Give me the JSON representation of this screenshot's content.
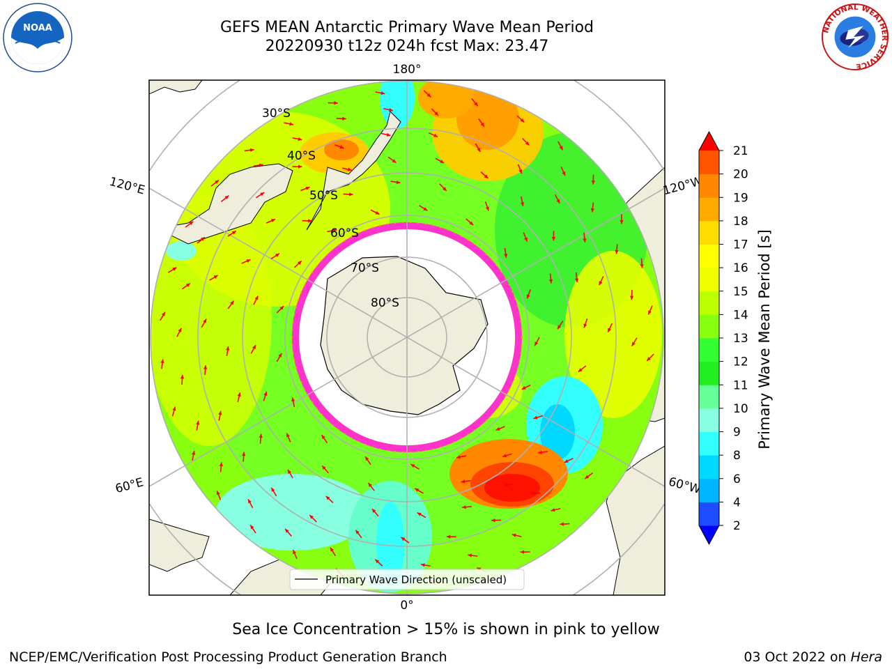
{
  "header": {
    "title_line1": "GEFS MEAN Antarctic Primary Wave Mean Period",
    "title_line2": "20220930 t12z 024h fcst   Max: 23.47"
  },
  "logos": {
    "left": {
      "icon": "noaa-logo",
      "text": "NOAA"
    },
    "right": {
      "icon": "national-weather-service-logo",
      "ring_text": "NATIONAL WEATHER SERVICE"
    }
  },
  "map": {
    "projection": "south-polar-stereographic",
    "edge_labels": {
      "top": "180°",
      "bottom": "0°",
      "left_upper": "120°E",
      "left_lower": "60°E",
      "right_upper": "120°W",
      "right_lower": "60°W"
    },
    "latitude_labels": [
      "30°S",
      "40°S",
      "50°S",
      "60°S",
      "70°S",
      "80°S"
    ],
    "legend_label": "Primary Wave Direction (unscaled)",
    "arrow_color": "#ff0000",
    "land_color": "#efeedc",
    "sea_ice_colors": [
      "#ff33cc",
      "#ffa500",
      "#ffff00"
    ]
  },
  "colorbar": {
    "label": "Primary Wave Mean Period [s]",
    "ticks": [
      "2",
      "4",
      "6",
      "8",
      "9",
      "10",
      "11",
      "12",
      "13",
      "14",
      "15",
      "16",
      "17",
      "18",
      "19",
      "20",
      "21"
    ],
    "colors": [
      "#1d4dff",
      "#00b5ff",
      "#00d9ff",
      "#33ffff",
      "#88ffe0",
      "#66ff99",
      "#22ee22",
      "#33ff33",
      "#88ff11",
      "#bbff00",
      "#eeff00",
      "#ffff00",
      "#ffdd00",
      "#ffaa00",
      "#ff8800",
      "#ff5500",
      "#ff2200"
    ],
    "extend_low_color": "#0000ff",
    "extend_high_color": "#ff0000"
  },
  "footer": {
    "caption": "Sea Ice Concentration > 15% is shown in pink to yellow",
    "org": "NCEP/EMC/Verification Post Processing Product Generation Branch",
    "date": "03 Oct 2022 on ",
    "machine": "Hera"
  }
}
